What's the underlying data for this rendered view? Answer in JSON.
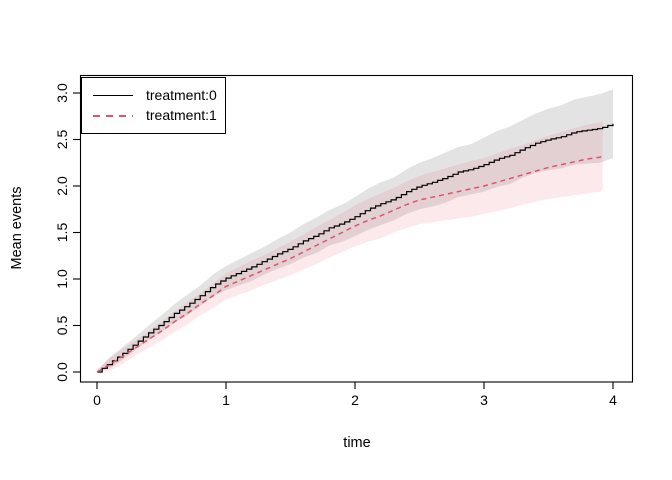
{
  "figure": {
    "background": "#ffffff",
    "frame_color": "#000000",
    "legend": {
      "position": "topleft",
      "items": [
        {
          "label": "treatment:0",
          "line_style": "solid",
          "color": "#000000"
        },
        {
          "label": "treatment:1",
          "line_style": "dashed",
          "color": "#DF536B"
        }
      ]
    }
  },
  "chart_data": {
    "type": "line",
    "title": "",
    "xlabel": "time",
    "ylabel": "Mean events",
    "xlim": [
      0,
      4
    ],
    "ylim": [
      0,
      3.2
    ],
    "grid": false,
    "legend_position": "topleft",
    "x_ticks": {
      "values": [
        0,
        1,
        2,
        3,
        4
      ],
      "labels": [
        "0",
        "1",
        "2",
        "3",
        "4"
      ]
    },
    "y_ticks": {
      "values": [
        0,
        0.5,
        1,
        1.5,
        2,
        2.5,
        3
      ],
      "labels": [
        "0.0",
        "0.5",
        "1.0",
        "1.5",
        "2.0",
        "2.5",
        "3.0"
      ]
    },
    "series": [
      {
        "name": "treatment:0",
        "style": "solid",
        "color": "#000000",
        "band_color": "rgba(0,0,0,0.11)",
        "x": [
          0,
          0.1,
          0.2,
          0.3,
          0.4,
          0.5,
          0.6,
          0.7,
          0.8,
          0.9,
          1,
          1.1,
          1.2,
          1.3,
          1.4,
          1.5,
          1.6,
          1.7,
          1.8,
          1.9,
          2,
          2.1,
          2.2,
          2.3,
          2.4,
          2.5,
          2.6,
          2.7,
          2.8,
          2.9,
          3,
          3.1,
          3.2,
          3.3,
          3.4,
          3.5,
          3.6,
          3.7,
          3.8,
          3.9,
          4
        ],
        "y": [
          0,
          0.1,
          0.2,
          0.31,
          0.42,
          0.52,
          0.63,
          0.72,
          0.82,
          0.93,
          1.01,
          1.07,
          1.13,
          1.2,
          1.27,
          1.33,
          1.41,
          1.47,
          1.55,
          1.6,
          1.67,
          1.75,
          1.81,
          1.86,
          1.94,
          2.0,
          2.04,
          2.09,
          2.15,
          2.18,
          2.23,
          2.29,
          2.33,
          2.4,
          2.46,
          2.5,
          2.53,
          2.58,
          2.6,
          2.62,
          2.67
        ],
        "upper": [
          0.02,
          0.16,
          0.27,
          0.38,
          0.5,
          0.61,
          0.73,
          0.83,
          0.93,
          1.05,
          1.14,
          1.21,
          1.28,
          1.35,
          1.43,
          1.5,
          1.59,
          1.66,
          1.74,
          1.8,
          1.88,
          1.97,
          2.04,
          2.09,
          2.18,
          2.25,
          2.3,
          2.36,
          2.42,
          2.45,
          2.52,
          2.59,
          2.64,
          2.71,
          2.78,
          2.83,
          2.87,
          2.93,
          2.96,
          2.99,
          3.04
        ],
        "lower": [
          0,
          0.04,
          0.13,
          0.24,
          0.34,
          0.43,
          0.53,
          0.61,
          0.71,
          0.81,
          0.88,
          0.93,
          0.98,
          1.05,
          1.11,
          1.16,
          1.23,
          1.28,
          1.36,
          1.4,
          1.46,
          1.53,
          1.58,
          1.63,
          1.7,
          1.75,
          1.78,
          1.82,
          1.88,
          1.91,
          1.94,
          1.99,
          2.02,
          2.09,
          2.14,
          2.17,
          2.19,
          2.23,
          2.24,
          2.25,
          2.3
        ]
      },
      {
        "name": "treatment:1",
        "style": "dashed",
        "color": "#DF536B",
        "band_color": "rgba(223,83,107,0.13)",
        "x": [
          0,
          0.1,
          0.2,
          0.3,
          0.4,
          0.5,
          0.6,
          0.7,
          0.8,
          0.9,
          1,
          1.1,
          1.2,
          1.3,
          1.4,
          1.5,
          1.6,
          1.7,
          1.8,
          1.9,
          2,
          2.1,
          2.2,
          2.3,
          2.4,
          2.5,
          2.6,
          2.7,
          2.8,
          2.9,
          3,
          3.1,
          3.2,
          3.3,
          3.4,
          3.5,
          3.6,
          3.7,
          3.8,
          3.9,
          3.92
        ],
        "y": [
          0,
          0.08,
          0.17,
          0.26,
          0.35,
          0.44,
          0.54,
          0.63,
          0.73,
          0.82,
          0.92,
          0.98,
          1.04,
          1.1,
          1.16,
          1.22,
          1.29,
          1.36,
          1.43,
          1.5,
          1.57,
          1.63,
          1.68,
          1.74,
          1.8,
          1.85,
          1.88,
          1.91,
          1.94,
          1.97,
          2.0,
          2.04,
          2.08,
          2.12,
          2.16,
          2.2,
          2.23,
          2.26,
          2.29,
          2.31,
          2.33
        ],
        "upper": [
          0.02,
          0.15,
          0.25,
          0.34,
          0.44,
          0.54,
          0.65,
          0.75,
          0.85,
          0.95,
          1.06,
          1.13,
          1.2,
          1.26,
          1.33,
          1.4,
          1.48,
          1.56,
          1.63,
          1.71,
          1.79,
          1.86,
          1.92,
          1.98,
          2.05,
          2.11,
          2.15,
          2.19,
          2.23,
          2.27,
          2.3,
          2.35,
          2.4,
          2.44,
          2.49,
          2.54,
          2.58,
          2.62,
          2.66,
          2.68,
          2.7
        ],
        "lower": [
          0,
          0.01,
          0.09,
          0.18,
          0.26,
          0.34,
          0.43,
          0.51,
          0.61,
          0.69,
          0.78,
          0.83,
          0.88,
          0.94,
          0.99,
          1.04,
          1.1,
          1.16,
          1.23,
          1.29,
          1.35,
          1.4,
          1.44,
          1.5,
          1.55,
          1.59,
          1.61,
          1.63,
          1.65,
          1.67,
          1.7,
          1.73,
          1.76,
          1.8,
          1.83,
          1.86,
          1.88,
          1.9,
          1.92,
          1.94,
          1.96
        ]
      }
    ]
  }
}
